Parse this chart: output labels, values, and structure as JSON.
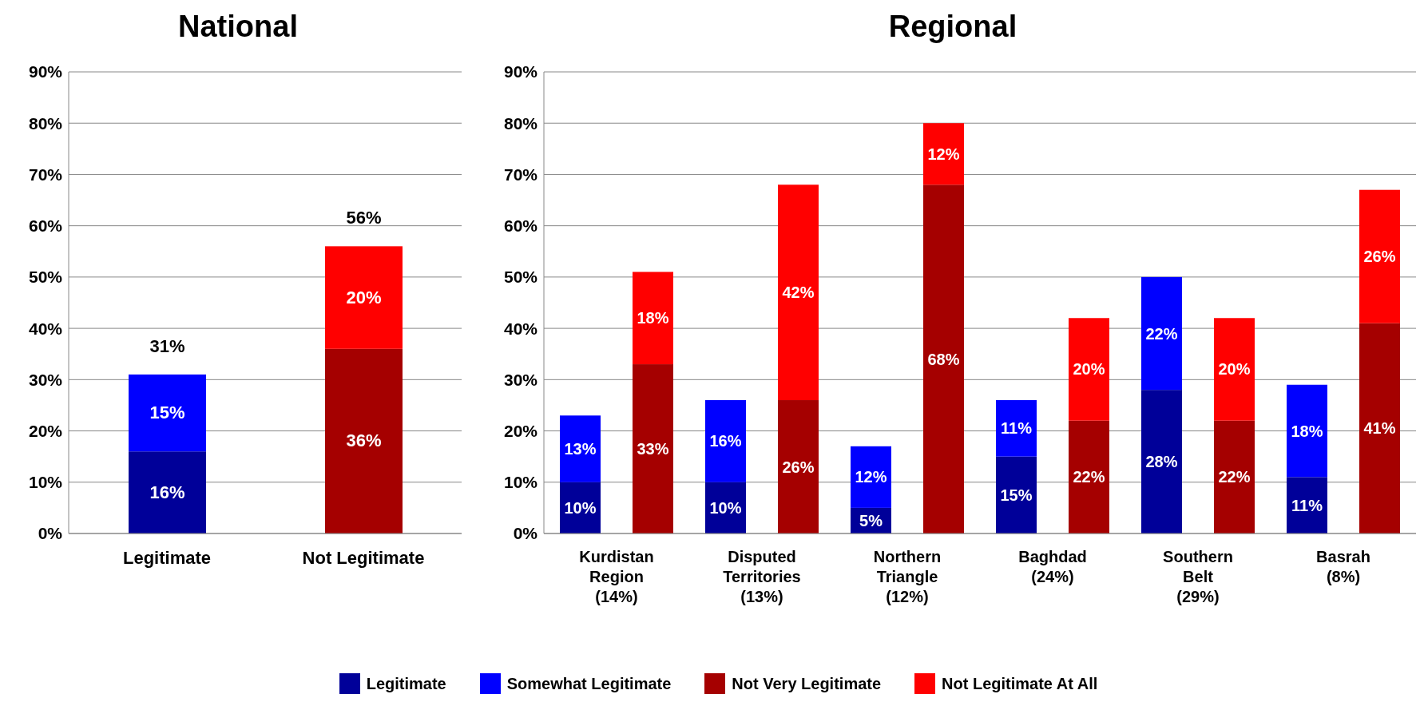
{
  "chart_data": [
    {
      "type": "bar",
      "title": "National",
      "categories": [
        "Legitimate",
        "Not Legitimate"
      ],
      "stacked": true,
      "ylim": [
        0,
        90
      ],
      "yticks": [
        {
          "value": 0,
          "label": "0%"
        },
        {
          "value": 10,
          "label": "10%"
        },
        {
          "value": 20,
          "label": "20%"
        },
        {
          "value": 30,
          "label": "30%"
        },
        {
          "value": 40,
          "label": "40%"
        },
        {
          "value": 50,
          "label": "50%"
        },
        {
          "value": 60,
          "label": "60%"
        },
        {
          "value": 70,
          "label": "70%"
        },
        {
          "value": 80,
          "label": "80%"
        },
        {
          "value": 90,
          "label": "90%"
        }
      ],
      "grid": "y",
      "legend": "bottom",
      "series": [
        {
          "name": "Legitimate",
          "color": "#000099",
          "values": [
            16,
            null
          ],
          "value_labels": [
            "16%",
            null
          ]
        },
        {
          "name": "Somewhat Legitimate",
          "color": "#0000ff",
          "values": [
            15,
            null
          ],
          "value_labels": [
            "15%",
            null
          ]
        },
        {
          "name": "Not Very Legitimate",
          "color": "#a50000",
          "values": [
            null,
            36
          ],
          "value_labels": [
            null,
            "36%"
          ]
        },
        {
          "name": "Not Legitimate At All",
          "color": "#ff0000",
          "values": [
            null,
            20
          ],
          "value_labels": [
            null,
            "20%"
          ]
        }
      ],
      "totals": [
        "31%",
        "56%"
      ]
    },
    {
      "type": "bar",
      "title": "Regional",
      "categories": [
        "Kurdistan\nRegion\n(14%)",
        null,
        "Disputed\nTerritories\n(13%)",
        null,
        "Northern\nTriangle\n(12%)",
        null,
        "Baghdad\n(24%)",
        null,
        "Southern\nBelt\n(29%)",
        null,
        "Basrah\n(8%)",
        null
      ],
      "stacked": true,
      "ylim": [
        0,
        90
      ],
      "yticks": [
        {
          "value": 0,
          "label": "0%"
        },
        {
          "value": 10,
          "label": "10%"
        },
        {
          "value": 20,
          "label": "20%"
        },
        {
          "value": 30,
          "label": "30%"
        },
        {
          "value": 40,
          "label": "40%"
        },
        {
          "value": 50,
          "label": "50%"
        },
        {
          "value": 60,
          "label": "60%"
        },
        {
          "value": 70,
          "label": "70%"
        },
        {
          "value": 80,
          "label": "80%"
        },
        {
          "value": 90,
          "label": "90%"
        }
      ],
      "grid": "y",
      "legend": "bottom",
      "series": [
        {
          "name": "Legitimate",
          "color": "#000099",
          "values": [
            10,
            null,
            10,
            null,
            5,
            null,
            15,
            null,
            28,
            null,
            11,
            null
          ],
          "value_labels": [
            "10%",
            null,
            "10%",
            null,
            "5%",
            null,
            "15%",
            null,
            "28%",
            null,
            "11%",
            null
          ]
        },
        {
          "name": "Somewhat Legitimate",
          "color": "#0000ff",
          "values": [
            13,
            null,
            16,
            null,
            12,
            null,
            11,
            null,
            22,
            null,
            18,
            null
          ],
          "value_labels": [
            "13%",
            null,
            "16%",
            null,
            "12%",
            null,
            "11%",
            null,
            "22%",
            null,
            "18%",
            null
          ]
        },
        {
          "name": "Not Very Legitimate",
          "color": "#a50000",
          "values": [
            null,
            33,
            null,
            26,
            null,
            68,
            null,
            22,
            null,
            22,
            null,
            41
          ],
          "value_labels": [
            null,
            "33%",
            null,
            "26%",
            null,
            "68%",
            null,
            "22%",
            null,
            "22%",
            null,
            "41%"
          ]
        },
        {
          "name": "Not Legitimate At All",
          "color": "#ff0000",
          "values": [
            null,
            18,
            null,
            42,
            null,
            12,
            null,
            20,
            null,
            20,
            null,
            26
          ],
          "value_labels": [
            null,
            "18%",
            null,
            "42%",
            null,
            "12%",
            null,
            "20%",
            null,
            "20%",
            null,
            "26%"
          ]
        }
      ]
    }
  ]
}
